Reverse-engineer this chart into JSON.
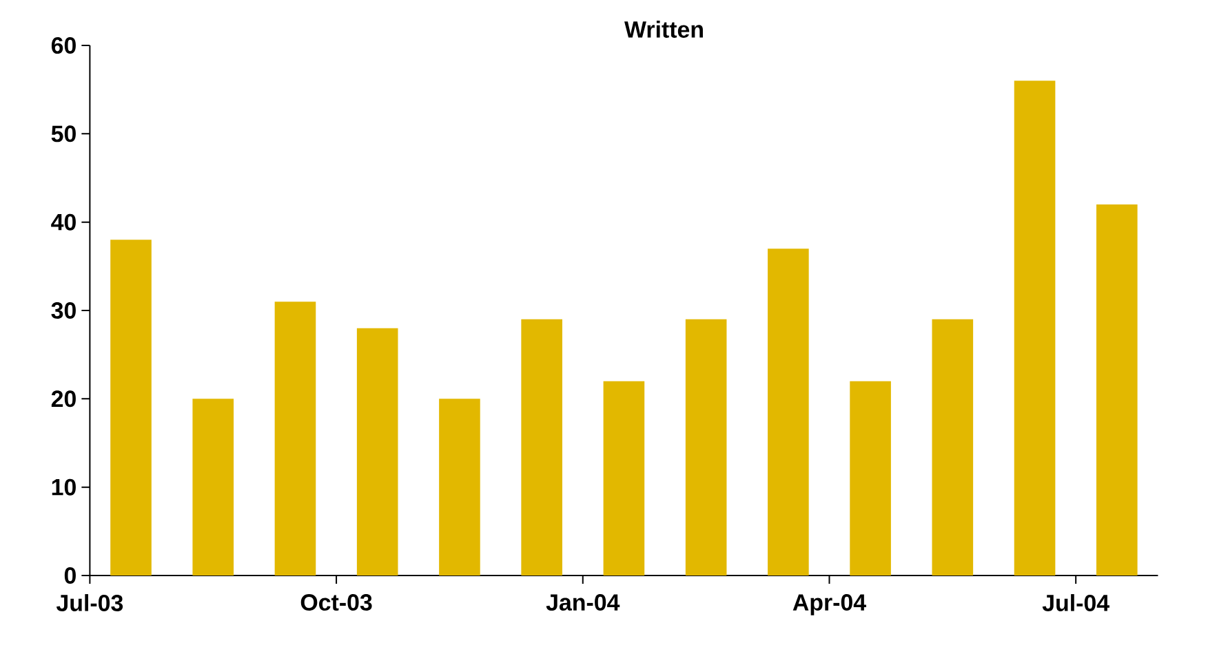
{
  "chart_data": {
    "type": "bar",
    "title": "Written",
    "categories": [
      "Jul-03",
      null,
      null,
      "Oct-03",
      null,
      null,
      "Jan-04",
      null,
      null,
      "Apr-04",
      null,
      null,
      "Jul-04"
    ],
    "values": [
      38,
      20,
      31,
      28,
      20,
      29,
      22,
      29,
      37,
      22,
      29,
      56,
      42
    ],
    "color": "#e2b800",
    "ylim": [
      0,
      60
    ],
    "yticks": [
      0,
      10,
      20,
      30,
      40,
      50,
      60
    ],
    "grid": false
  }
}
